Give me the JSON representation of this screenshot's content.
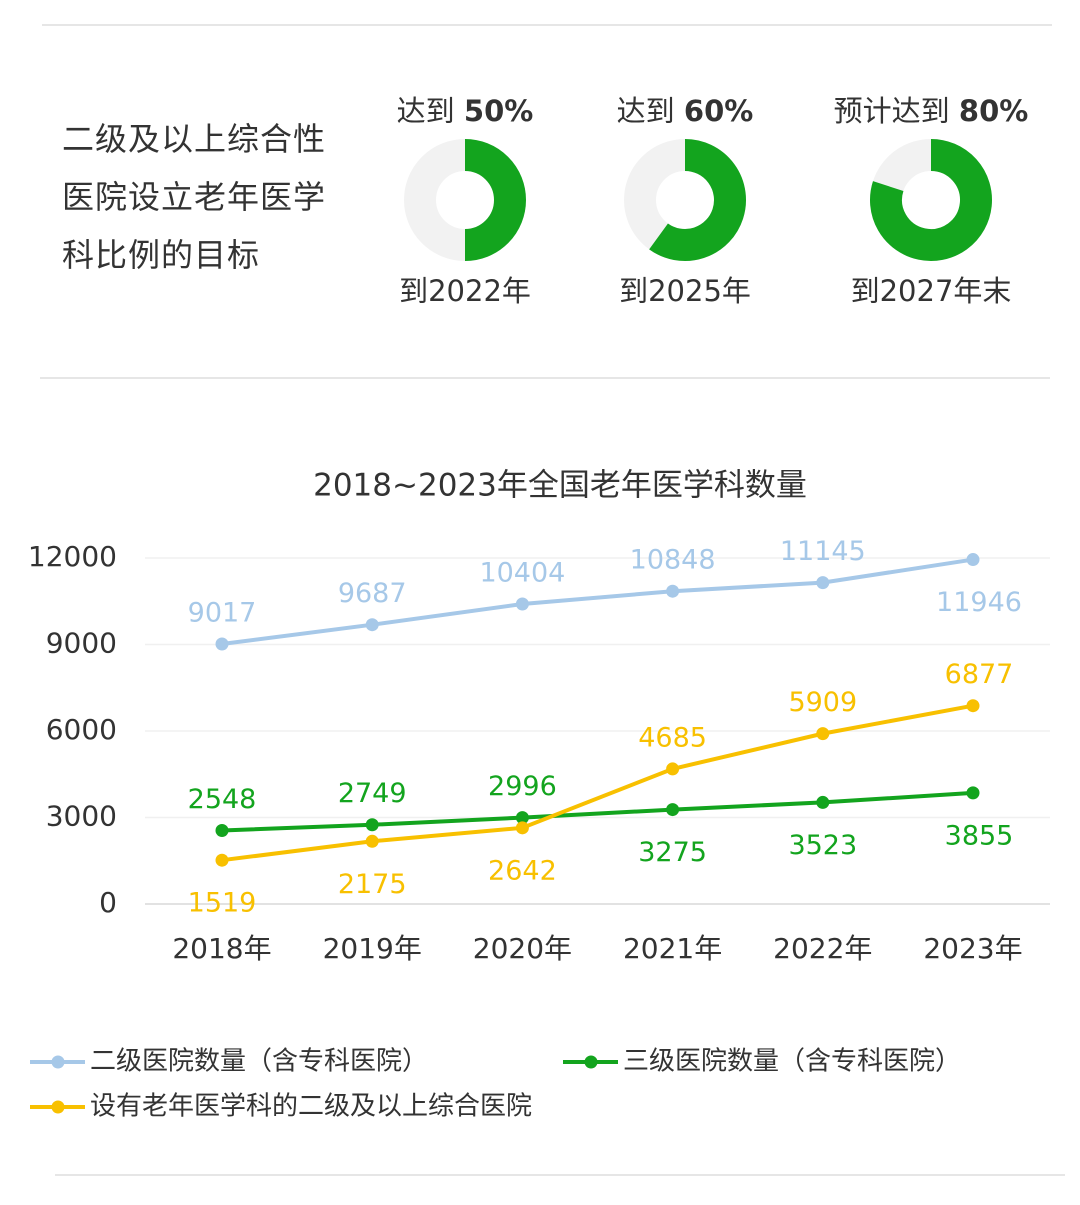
{
  "chart_data": [
    {
      "type": "donut",
      "title": "二级及以上综合性医院设立老年医学科比例的目标",
      "prefixes": [
        "达到",
        "达到",
        "预计达到"
      ],
      "values": [
        50,
        60,
        80
      ],
      "value_labels": [
        "50%",
        "60%",
        "80%"
      ],
      "categories": [
        "到2022年",
        "到2025年",
        "到2027年末"
      ],
      "color": "#13a41e",
      "track_color": "#f2f2f2"
    },
    {
      "type": "line",
      "title": "2018~2023年全国老年医学科数量",
      "categories": [
        "2018年",
        "2019年",
        "2020年",
        "2021年",
        "2022年",
        "2023年"
      ],
      "series": [
        {
          "name": "二级医院数量（含专科医院）",
          "color": "#a6c8e8",
          "values": [
            9017,
            9687,
            10404,
            10848,
            11145,
            11946
          ],
          "label_positions": [
            "above",
            "above",
            "above",
            "above",
            "above",
            "below"
          ]
        },
        {
          "name": "三级医院数量（含专科医院）",
          "color": "#13a41e",
          "values": [
            2548,
            2749,
            2996,
            3275,
            3523,
            3855
          ],
          "label_positions": [
            "above",
            "above",
            "above",
            "below",
            "below",
            "below"
          ]
        },
        {
          "name": "设有老年医学科的二级及以上综合医院",
          "color": "#f8c000",
          "values": [
            1519,
            2175,
            2642,
            4685,
            5909,
            6877
          ],
          "label_positions": [
            "below",
            "below",
            "below",
            "above",
            "above",
            "above"
          ]
        }
      ],
      "ylim": [
        0,
        12000
      ],
      "yticks": [
        0,
        3000,
        6000,
        9000,
        12000
      ],
      "grid": true,
      "legend": "bottom"
    }
  ]
}
